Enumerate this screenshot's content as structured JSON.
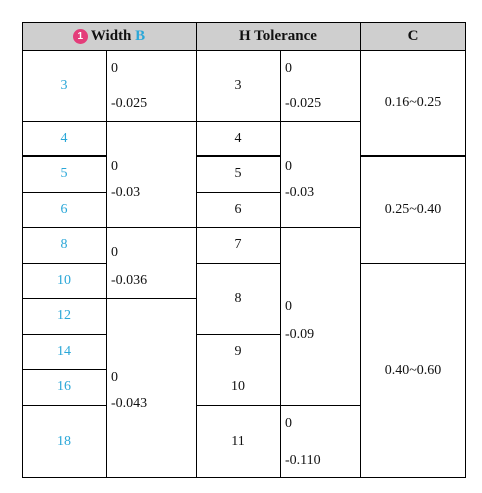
{
  "header": {
    "badge": "1",
    "width_label": "Width",
    "width_symbol": "B",
    "h_tolerance": "H Tolerance",
    "c": "C"
  },
  "width_values": [
    "3",
    "4",
    "5",
    "6",
    "8",
    "10",
    "12",
    "14",
    "16",
    "18"
  ],
  "width_tolerances": [
    {
      "upper": "0",
      "lower": "-0.025"
    },
    {
      "upper": "0",
      "lower": "-0.03"
    },
    {
      "upper": "0",
      "lower": "-0.036"
    },
    {
      "upper": "0",
      "lower": "-0.043"
    }
  ],
  "h_values": [
    "3",
    "4",
    "5",
    "6",
    "7",
    "8",
    "9",
    "10",
    "11"
  ],
  "h_tolerances": [
    {
      "upper": "0",
      "lower": "-0.025"
    },
    {
      "upper": "0",
      "lower": "-0.03"
    },
    {
      "upper": "0",
      "lower": "-0.09"
    },
    {
      "upper": "0",
      "lower": "-0.110"
    }
  ],
  "c_values": [
    "0.16~0.25",
    "0.25~0.40",
    "0.40~0.60"
  ]
}
